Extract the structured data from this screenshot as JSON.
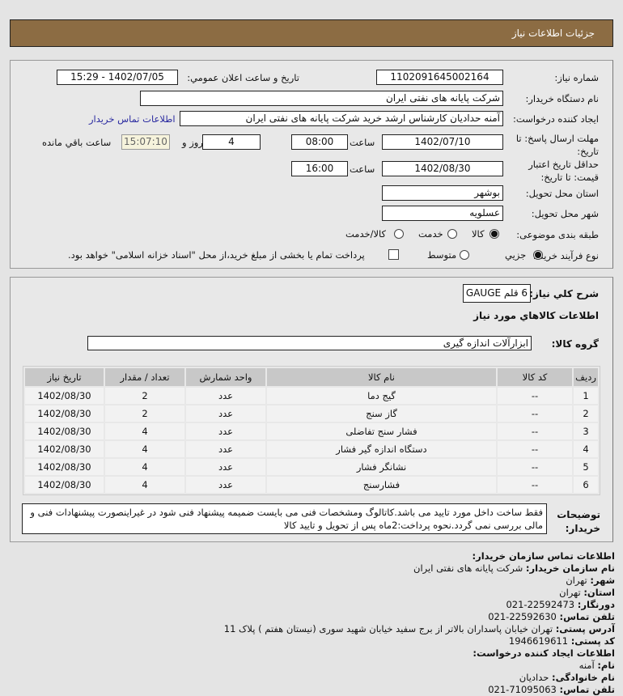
{
  "header": {
    "title": "جزئيات اطلاعات نياز"
  },
  "form": {
    "need_number_label": "شماره نياز:",
    "need_number": "1102091645002164",
    "announce_label": "تاريخ و ساعت اعلان عمومي:",
    "announce_value": "1402/07/05 - 15:29",
    "buyer_label": "نام دستگاه خريدار:",
    "buyer_value": "شرکت پايانه هاى نفتى ايران",
    "creator_label": "ايجاد کننده درخواست:",
    "creator_value": "آمنه  حداديان  کارشناس ارشد خريد  شرکت پايانه هاى نفتى ايران",
    "contact_link": "اطلاعات تماس خريدار",
    "deadline_label": "مهلت ارسال پاسخ: تا تاريخ:",
    "deadline_date": "1402/07/10",
    "time_label": "ساعت",
    "deadline_time": "08:00",
    "days": "4",
    "days_label": "روز و",
    "remaining": "15:07:10",
    "remaining_label": "ساعت باقي مانده",
    "validity_label": "حداقل تاريخ اعتبار قيمت: تا تاريخ:",
    "validity_date": "1402/08/30",
    "validity_time": "16:00",
    "province_label": "استان محل تحويل:",
    "province": "بوشهر",
    "city_label": "شهر محل تحويل:",
    "city": "عسلويه",
    "category_label": "طبقه بندى موضوعى:",
    "category_options": [
      "کالا",
      "خدمت",
      "کالا/خدمت"
    ],
    "category_selected": "کالا",
    "process_label": "نوع فرآيند خريد :",
    "process_options": [
      "جزيي",
      "متوسط"
    ],
    "process_selected": "جزيي",
    "payment_note": "پرداخت تمام يا بخشى از مبلغ خريد،از محل \"اسناد خزانه اسلامى\" خواهد بود.",
    "payment_checked": false
  },
  "summary": {
    "label": "شرح کلي نياز:",
    "value": "6 قلم GAUGE",
    "goods_title": "اطلاعات کالاهاي مورد نياز",
    "group_label": "گروه کالا:",
    "group_value": "ابزارآلات اندازه گيرى"
  },
  "table": {
    "headers": [
      "رديف",
      "کد کالا",
      "نام کالا",
      "واحد شمارش",
      "تعداد / مقدار",
      "تاريخ نياز"
    ],
    "rows": [
      [
        "1",
        "--",
        "گيج دما",
        "عدد",
        "2",
        "1402/08/30"
      ],
      [
        "2",
        "--",
        "گاز سنج",
        "عدد",
        "2",
        "1402/08/30"
      ],
      [
        "3",
        "--",
        "فشار سنج تفاضلى",
        "عدد",
        "4",
        "1402/08/30"
      ],
      [
        "4",
        "--",
        "دستگاه اندازه گير فشار",
        "عدد",
        "4",
        "1402/08/30"
      ],
      [
        "5",
        "--",
        "نشانگر فشار",
        "عدد",
        "4",
        "1402/08/30"
      ],
      [
        "6",
        "--",
        "فشارسنج",
        "عدد",
        "4",
        "1402/08/30"
      ]
    ]
  },
  "notes": {
    "label": "توضيحات خريدار:",
    "text": "فقط ساخت داخل مورد تاييد مى باشد.کاتالوگ ومشخصات فنى مى بايست ضميمه پيشنهاد فنى شود در غيراينصورت پيشنهادات فنى و مالى بررسى نمى گردد.نحوه پرداخت:2ماه پس از تحويل و تاييد کالا"
  },
  "contact": {
    "title": "اطلاعات تماس سازمان خريدار:",
    "org_label": "نام سازمان خريدار:",
    "org": "شرکت پايانه هاى نفتى ايران",
    "city_label": "شهر:",
    "city": "تهران",
    "province_label": "استان:",
    "province": "تهران",
    "fax_label": "دورنگار:",
    "fax": "22592473-021",
    "phone_label": "تلفن تماس:",
    "phone": "22592630-021",
    "address_label": "آدرس پستى:",
    "address": "تهران خيابان پاسداران بالاتر از برج سفيد خيابان شهيد سورى (نيستان هفتم ) پلاک 11",
    "postal_label": "کد پستى:",
    "postal": "1946619611",
    "creator_title": "اطلاعات ايجاد کننده درخواست:",
    "name_label": "نام:",
    "name": "آمنه",
    "family_label": "نام خانوادگى:",
    "family": "حداديان",
    "creator_phone_label": "تلفن تماس:",
    "creator_phone": "71095063-021"
  }
}
